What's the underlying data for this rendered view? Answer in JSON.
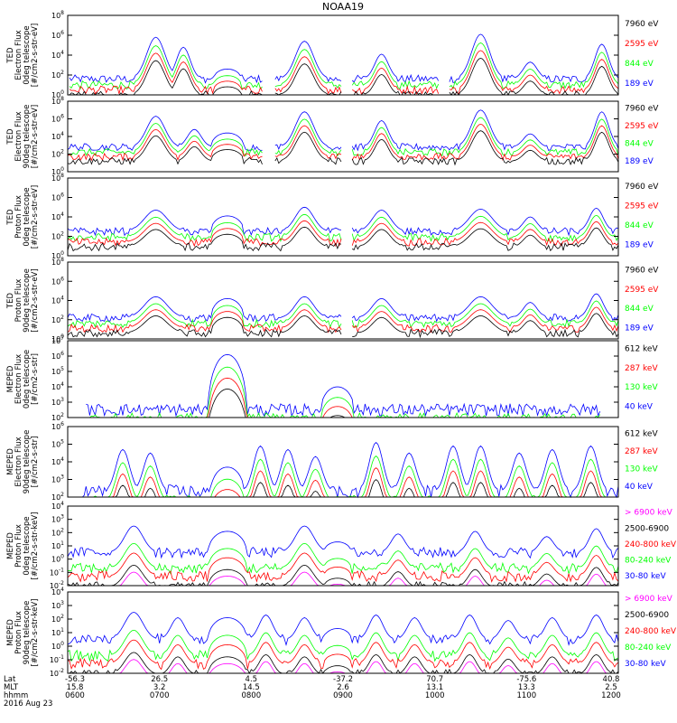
{
  "title": "NOAA19",
  "colors": {
    "blue": "#0000ff",
    "red": "#ff0000",
    "green": "#00ff00",
    "black": "#000000",
    "magenta": "#ff00ff"
  },
  "chart_data": [
    {
      "type": "line",
      "panel": "TED Electron Flux 0deg telescope",
      "ylabel": [
        "TED",
        "Electron Flux",
        "0deg telescope",
        "[#/cm2-s-str-eV]"
      ],
      "yscale": "log",
      "ylim_exp": [
        0,
        8
      ],
      "ytick_exps": [
        0,
        2,
        4,
        6,
        8
      ],
      "legend": [
        {
          "label": "7960 eV",
          "color": "black"
        },
        {
          "label": "2595 eV",
          "color": "red"
        },
        {
          "label": "844 eV",
          "color": "green"
        },
        {
          "label": "189 eV",
          "color": "blue"
        }
      ],
      "baseline_exp": 1.6,
      "events": [
        {
          "t": 0.16,
          "w": 0.04,
          "a": 4.2
        },
        {
          "t": 0.21,
          "w": 0.03,
          "a": 3.2
        },
        {
          "t": 0.29,
          "w": 0.025,
          "a": 1.0,
          "shape": "arc"
        },
        {
          "t": 0.43,
          "w": 0.04,
          "a": 3.8
        },
        {
          "t": 0.57,
          "w": 0.03,
          "a": 2.5
        },
        {
          "t": 0.75,
          "w": 0.04,
          "a": 4.5
        },
        {
          "t": 0.84,
          "w": 0.03,
          "a": 1.7
        },
        {
          "t": 0.97,
          "w": 0.03,
          "a": 3.5
        }
      ],
      "gaps": [
        [
          0.0,
          0.0
        ],
        [
          0.355,
          0.375
        ],
        [
          0.5,
          0.515
        ],
        [
          0.675,
          0.69
        ]
      ]
    },
    {
      "type": "line",
      "panel": "TED Electron Flux 90deg telescope",
      "ylabel": [
        "TED",
        "Electron Flux",
        "90deg telescope",
        "[#/cm2-s-str-eV]"
      ],
      "yscale": "log",
      "ylim_exp": [
        0,
        8
      ],
      "ytick_exps": [
        0,
        2,
        4,
        6,
        8
      ],
      "legend": [
        {
          "label": "7960 eV",
          "color": "black"
        },
        {
          "label": "2595 eV",
          "color": "red"
        },
        {
          "label": "844 eV",
          "color": "green"
        },
        {
          "label": "189 eV",
          "color": "blue"
        }
      ],
      "baseline_exp": 2.8,
      "events": [
        {
          "t": 0.16,
          "w": 0.04,
          "a": 3.5
        },
        {
          "t": 0.23,
          "w": 0.03,
          "a": 2.0
        },
        {
          "t": 0.29,
          "w": 0.03,
          "a": 1.6,
          "shape": "arc"
        },
        {
          "t": 0.43,
          "w": 0.04,
          "a": 4.0
        },
        {
          "t": 0.57,
          "w": 0.03,
          "a": 3.0
        },
        {
          "t": 0.75,
          "w": 0.04,
          "a": 4.2
        },
        {
          "t": 0.84,
          "w": 0.03,
          "a": 1.5
        },
        {
          "t": 0.97,
          "w": 0.03,
          "a": 4.0
        }
      ],
      "gaps": [
        [
          0.355,
          0.375
        ],
        [
          0.5,
          0.515
        ]
      ]
    },
    {
      "type": "line",
      "panel": "TED Proton Flux 0deg telescope",
      "ylabel": [
        "TED",
        "Proton Flux",
        "0deg telescope",
        "[#/cm2-s-str-eV]"
      ],
      "yscale": "log",
      "ylim_exp": [
        0,
        8
      ],
      "ytick_exps": [
        0,
        2,
        4,
        6,
        8
      ],
      "legend": [
        {
          "label": "7960 eV",
          "color": "black"
        },
        {
          "label": "2595 eV",
          "color": "red"
        },
        {
          "label": "844 eV",
          "color": "green"
        },
        {
          "label": "189 eV",
          "color": "blue"
        }
      ],
      "baseline_exp": 2.5,
      "events": [
        {
          "t": 0.16,
          "w": 0.05,
          "a": 2.2
        },
        {
          "t": 0.29,
          "w": 0.03,
          "a": 1.6,
          "shape": "arc"
        },
        {
          "t": 0.43,
          "w": 0.04,
          "a": 2.5
        },
        {
          "t": 0.57,
          "w": 0.04,
          "a": 2.2
        },
        {
          "t": 0.75,
          "w": 0.05,
          "a": 2.3
        },
        {
          "t": 0.84,
          "w": 0.03,
          "a": 1.5
        },
        {
          "t": 0.96,
          "w": 0.03,
          "a": 2.4
        }
      ],
      "gaps": [
        [
          0.5,
          0.515
        ]
      ]
    },
    {
      "type": "line",
      "panel": "TED Proton Flux 90deg telescope",
      "ylabel": [
        "TED",
        "Proton Flux",
        "90deg telescope",
        "[#/cm2-s-str-eV]"
      ],
      "yscale": "log",
      "ylim_exp": [
        0,
        8
      ],
      "ytick_exps": [
        0,
        2,
        4,
        6,
        8
      ],
      "legend": [
        {
          "label": "7960 eV",
          "color": "black"
        },
        {
          "label": "2595 eV",
          "color": "red"
        },
        {
          "label": "844 eV",
          "color": "green"
        },
        {
          "label": "189 eV",
          "color": "blue"
        }
      ],
      "baseline_exp": 2.2,
      "events": [
        {
          "t": 0.16,
          "w": 0.05,
          "a": 2.2
        },
        {
          "t": 0.29,
          "w": 0.03,
          "a": 2.0,
          "shape": "arc"
        },
        {
          "t": 0.43,
          "w": 0.04,
          "a": 2.2
        },
        {
          "t": 0.57,
          "w": 0.04,
          "a": 2.0
        },
        {
          "t": 0.75,
          "w": 0.05,
          "a": 2.2
        },
        {
          "t": 0.84,
          "w": 0.03,
          "a": 1.6
        },
        {
          "t": 0.96,
          "w": 0.03,
          "a": 2.5
        }
      ],
      "gaps": [
        [
          0.5,
          0.515
        ]
      ]
    },
    {
      "type": "line",
      "panel": "MEPED Electron Flux 0deg telescope",
      "ylabel": [
        "MEPED",
        "Electron Flux",
        "0deg telescope",
        "[#/cm2-s-str]"
      ],
      "yscale": "log",
      "ylim_exp": [
        2,
        7
      ],
      "ytick_exps": [
        2,
        3,
        4,
        5,
        6,
        7
      ],
      "legend": [
        {
          "label": "612 keV",
          "color": "black"
        },
        {
          "label": "287 keV",
          "color": "red"
        },
        {
          "label": "130 keV",
          "color": "green"
        },
        {
          "label": "40 keV",
          "color": "blue"
        }
      ],
      "baseline_exp": 2.5,
      "events": [
        {
          "t": 0.29,
          "w": 0.035,
          "a": 3.6,
          "shape": "arc"
        },
        {
          "t": 0.49,
          "w": 0.03,
          "a": 1.5,
          "shape": "arc"
        }
      ],
      "gaps": [
        [
          0.0,
          0.03
        ],
        [
          0.97,
          1.0
        ]
      ]
    },
    {
      "type": "line",
      "panel": "MEPED Electron Flux 90deg telescope",
      "ylabel": [
        "MEPED",
        "Electron Flux",
        "90deg telescope",
        "[#/cm2-s-str]"
      ],
      "yscale": "log",
      "ylim_exp": [
        2,
        6
      ],
      "ytick_exps": [
        2,
        3,
        4,
        5,
        6
      ],
      "legend": [
        {
          "label": "612 keV",
          "color": "black"
        },
        {
          "label": "287 keV",
          "color": "red"
        },
        {
          "label": "130 keV",
          "color": "green"
        },
        {
          "label": "40 keV",
          "color": "blue"
        }
      ],
      "baseline_exp": 2.3,
      "events": [
        {
          "t": 0.1,
          "w": 0.03,
          "a": 2.4
        },
        {
          "t": 0.15,
          "w": 0.03,
          "a": 2.2
        },
        {
          "t": 0.29,
          "w": 0.03,
          "a": 1.4,
          "shape": "arc"
        },
        {
          "t": 0.35,
          "w": 0.03,
          "a": 2.6
        },
        {
          "t": 0.4,
          "w": 0.03,
          "a": 2.4
        },
        {
          "t": 0.45,
          "w": 0.03,
          "a": 2.0
        },
        {
          "t": 0.56,
          "w": 0.03,
          "a": 2.8
        },
        {
          "t": 0.62,
          "w": 0.03,
          "a": 2.2
        },
        {
          "t": 0.7,
          "w": 0.03,
          "a": 2.6
        },
        {
          "t": 0.75,
          "w": 0.03,
          "a": 2.6
        },
        {
          "t": 0.82,
          "w": 0.03,
          "a": 2.2
        },
        {
          "t": 0.88,
          "w": 0.03,
          "a": 2.4
        },
        {
          "t": 0.95,
          "w": 0.03,
          "a": 2.6
        }
      ],
      "gaps": [
        [
          0.0,
          0.02
        ]
      ]
    },
    {
      "type": "line",
      "panel": "MEPED Proton Flux 0deg telescope",
      "ylabel": [
        "MEPED",
        "Proton Flux",
        "0deg telescope",
        "[#/cm2-s-str-keV]"
      ],
      "yscale": "log",
      "ylim_exp": [
        -2,
        4
      ],
      "ytick_exps": [
        -2,
        -1,
        0,
        1,
        2,
        3,
        4
      ],
      "legend": [
        {
          "label": "> 6900 keV",
          "color": "magenta"
        },
        {
          "label": "2500-6900",
          "color": "black"
        },
        {
          "label": "240-800 keV",
          "color": "red"
        },
        {
          "label": "80-240 keV",
          "color": "green"
        },
        {
          "label": "30-80 keV",
          "color": "blue"
        }
      ],
      "baseline_exp": 0.5,
      "events": [
        {
          "t": 0.12,
          "w": 0.04,
          "a": 2.0
        },
        {
          "t": 0.29,
          "w": 0.035,
          "a": 1.6,
          "shape": "arc"
        },
        {
          "t": 0.43,
          "w": 0.04,
          "a": 2.0
        },
        {
          "t": 0.49,
          "w": 0.025,
          "a": 0.8,
          "shape": "arc"
        },
        {
          "t": 0.6,
          "w": 0.03,
          "a": 1.4
        },
        {
          "t": 0.74,
          "w": 0.03,
          "a": 1.6
        },
        {
          "t": 0.87,
          "w": 0.03,
          "a": 1.2
        },
        {
          "t": 0.96,
          "w": 0.03,
          "a": 1.8
        }
      ],
      "gaps": []
    },
    {
      "type": "line",
      "panel": "MEPED Proton Flux 90deg telescope",
      "ylabel": [
        "MEPED",
        "Proton Flux",
        "90deg telescope",
        "[#/cm2-s-str-keV]"
      ],
      "yscale": "log",
      "ylim_exp": [
        -2,
        4
      ],
      "ytick_exps": [
        -2,
        -1,
        0,
        1,
        2,
        3,
        4
      ],
      "legend": [
        {
          "label": "> 6900 keV",
          "color": "magenta"
        },
        {
          "label": "2500-6900",
          "color": "black"
        },
        {
          "label": "240-800 keV",
          "color": "red"
        },
        {
          "label": "80-240 keV",
          "color": "green"
        },
        {
          "label": "30-80 keV",
          "color": "blue"
        }
      ],
      "baseline_exp": 0.5,
      "events": [
        {
          "t": 0.12,
          "w": 0.04,
          "a": 2.0
        },
        {
          "t": 0.2,
          "w": 0.03,
          "a": 1.6
        },
        {
          "t": 0.29,
          "w": 0.035,
          "a": 1.6,
          "shape": "arc"
        },
        {
          "t": 0.36,
          "w": 0.03,
          "a": 1.8
        },
        {
          "t": 0.43,
          "w": 0.03,
          "a": 1.6
        },
        {
          "t": 0.49,
          "w": 0.025,
          "a": 0.8,
          "shape": "arc"
        },
        {
          "t": 0.56,
          "w": 0.03,
          "a": 1.8
        },
        {
          "t": 0.63,
          "w": 0.03,
          "a": 1.6
        },
        {
          "t": 0.73,
          "w": 0.03,
          "a": 1.8
        },
        {
          "t": 0.8,
          "w": 0.03,
          "a": 1.4
        },
        {
          "t": 0.88,
          "w": 0.03,
          "a": 1.6
        },
        {
          "t": 0.96,
          "w": 0.03,
          "a": 1.8
        }
      ],
      "gaps": []
    }
  ],
  "xaxis": {
    "row_labels": [
      "Lat",
      "MLT",
      "hhmm",
      "2016 Aug 23"
    ],
    "ticks": [
      {
        "t": 0.0,
        "lat": "-56.3",
        "mlt": "15.8",
        "hhmm": "0600"
      },
      {
        "t": 0.1667,
        "lat": "26.5",
        "mlt": "3.2",
        "hhmm": "0700"
      },
      {
        "t": 0.3333,
        "lat": "4.5",
        "mlt": "14.5",
        "hhmm": "0800"
      },
      {
        "t": 0.5,
        "lat": "-37.2",
        "mlt": "2.6",
        "hhmm": "0900"
      },
      {
        "t": 0.6667,
        "lat": "70.7",
        "mlt": "13.1",
        "hhmm": "1000"
      },
      {
        "t": 0.8333,
        "lat": "-75.6",
        "mlt": "13.3",
        "hhmm": "1100"
      },
      {
        "t": 1.0,
        "lat": "40.8",
        "mlt": "2.5",
        "hhmm": "1200"
      }
    ]
  }
}
